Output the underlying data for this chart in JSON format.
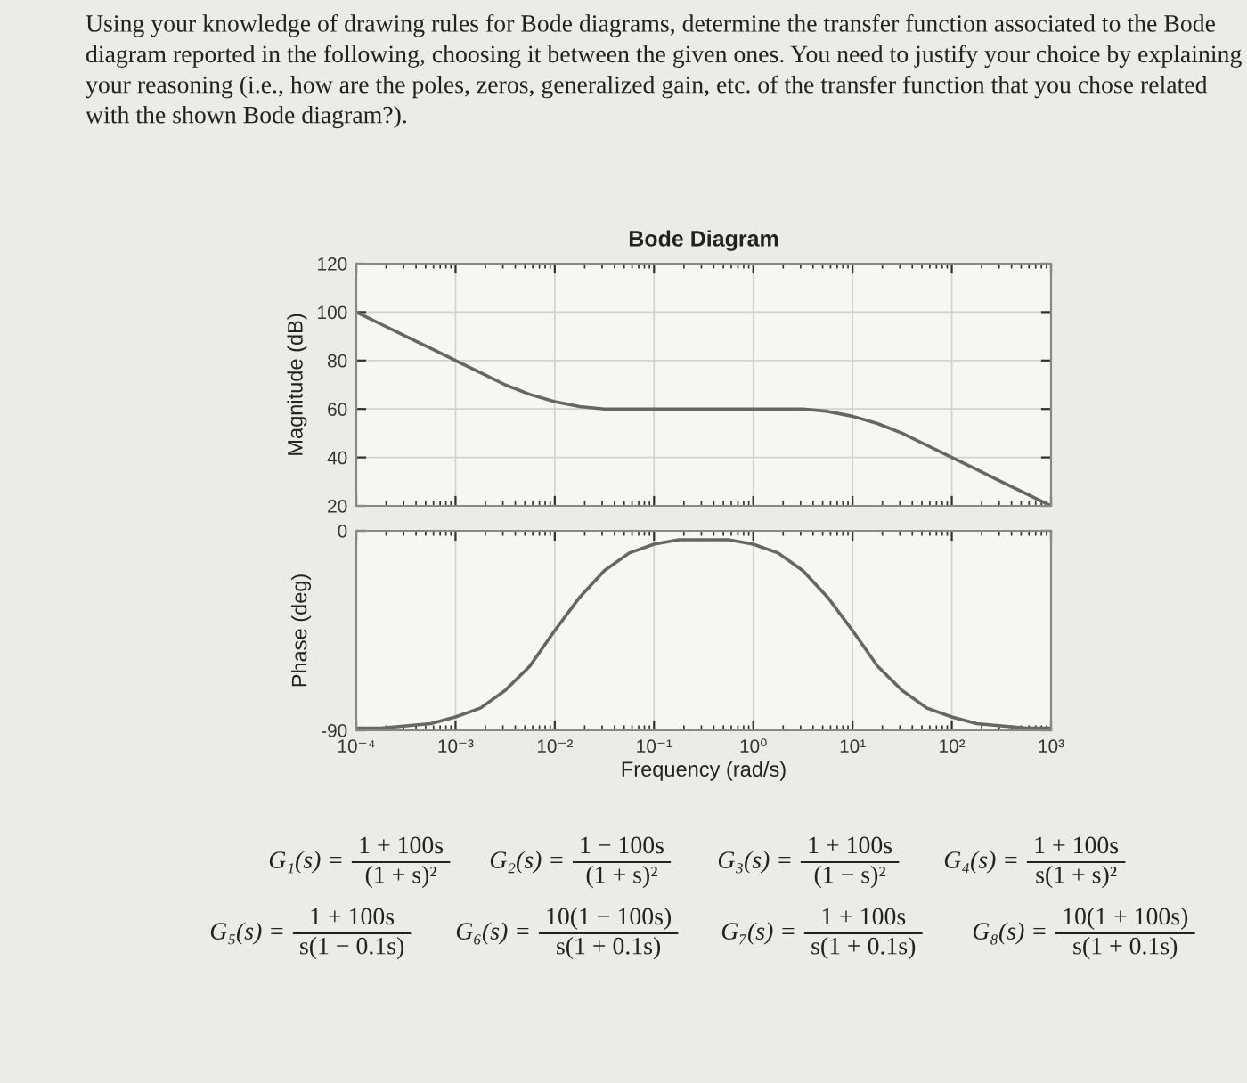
{
  "chart_data": [
    {
      "type": "line",
      "title": "Bode Diagram",
      "ylabel": "Magnitude (dB)",
      "annotations": [
        "Using your knowledge of drawing rules for Bode diagrams, determine the transfer function associated to the Bode diagram reported in the following, choosing it between the given ones. You need to justify your choice by explaining your reasoning (i.e., how are the poles, zeros, generalized gain, etc. of the transfer function that you chose related with the shown Bode diagram?)."
      ],
      "x": [
        0.0001,
        0.000178,
        0.000316,
        0.000562,
        0.001,
        0.00178,
        0.00316,
        0.00562,
        0.01,
        0.0178,
        0.0316,
        0.0562,
        0.1,
        0.178,
        0.316,
        0.562,
        1,
        1.78,
        3.16,
        5.62,
        10,
        17.8,
        31.6,
        56.2,
        100,
        178,
        316,
        562,
        1000
      ],
      "series": [
        {
          "color": "#666666",
          "values": [
            100,
            95,
            90,
            85,
            80,
            75,
            70,
            66,
            63,
            61,
            60,
            60,
            60,
            60,
            60,
            60,
            60,
            60,
            60,
            59,
            57,
            54,
            50,
            45,
            40,
            35,
            30,
            25,
            20
          ]
        }
      ],
      "xlim": [
        0.0001,
        1000
      ],
      "xticks": [
        {
          "value": 0.0001,
          "label": null
        },
        {
          "value": 0.001,
          "label": null
        },
        {
          "value": 0.01,
          "label": null
        },
        {
          "value": 0.1,
          "label": null
        },
        {
          "value": 1,
          "label": null
        },
        {
          "value": 10,
          "label": null
        },
        {
          "value": 100,
          "label": null
        },
        {
          "value": 1000,
          "label": null
        }
      ],
      "ylim": [
        20,
        120
      ],
      "yticks": [
        20,
        40,
        60,
        80,
        100,
        120
      ],
      "log": "x",
      "grid": true,
      "tick_labels": "y",
      "line_style": "solid"
    },
    {
      "type": "line",
      "xlabel": "Frequency (rad/s)",
      "ylabel": "Phase (deg)",
      "annotations": [
        "G₁(s) =",
        "1 + 100s",
        "(1 + s)²",
        "G₂(s) =",
        "1 − 100s",
        "(1 + s)²",
        "G₃(s) =",
        "1 + 100s",
        "(1 − s)²",
        "G₄(s) =",
        "1 + 100s",
        "s(1 + s)²",
        "G₅(s) =",
        "1 + 100s",
        "s(1 − 0.1s)",
        "G₆(s) =",
        "10(1 − 100s)",
        "s(1 + 0.1s)",
        "G₇(s) =",
        "1 + 100s",
        "s(1 + 0.1s)",
        "G₈(s) =",
        "10(1 + 100s)",
        "s(1 + 0.1s)"
      ],
      "x": [
        0.0001,
        0.000178,
        0.000316,
        0.000562,
        0.001,
        0.00178,
        0.00316,
        0.00562,
        0.01,
        0.0178,
        0.0316,
        0.0562,
        0.1,
        0.178,
        0.316,
        0.562,
        1,
        1.78,
        3.16,
        5.62,
        10,
        17.8,
        31.6,
        56.2,
        100,
        178,
        316,
        562,
        1000
      ],
      "series": [
        {
          "color": "#666666",
          "values": [
            -89,
            -89,
            -88,
            -87,
            -84,
            -80,
            -72,
            -61,
            -45,
            -30,
            -18,
            -10,
            -6,
            -4,
            -4,
            -4,
            -6,
            -10,
            -18,
            -30,
            -45,
            -61,
            -72,
            -80,
            -84,
            -87,
            -88,
            -89,
            -89
          ]
        }
      ],
      "xlim": [
        0.0001,
        1000
      ],
      "xticks": [
        {
          "value": 0.0001,
          "label": "10⁻⁴"
        },
        {
          "value": 0.001,
          "label": "10⁻³"
        },
        {
          "value": 0.01,
          "label": "10⁻²"
        },
        {
          "value": 0.1,
          "label": "10⁻¹"
        },
        {
          "value": 1,
          "label": "10⁰"
        },
        {
          "value": 10,
          "label": "10¹"
        },
        {
          "value": 100,
          "label": "10²"
        },
        {
          "value": 1000,
          "label": "10³"
        }
      ],
      "ylim": [
        -90,
        0
      ],
      "yticks": [
        -90,
        0
      ],
      "log": "x",
      "grid": true,
      "line_style": "solid"
    }
  ]
}
